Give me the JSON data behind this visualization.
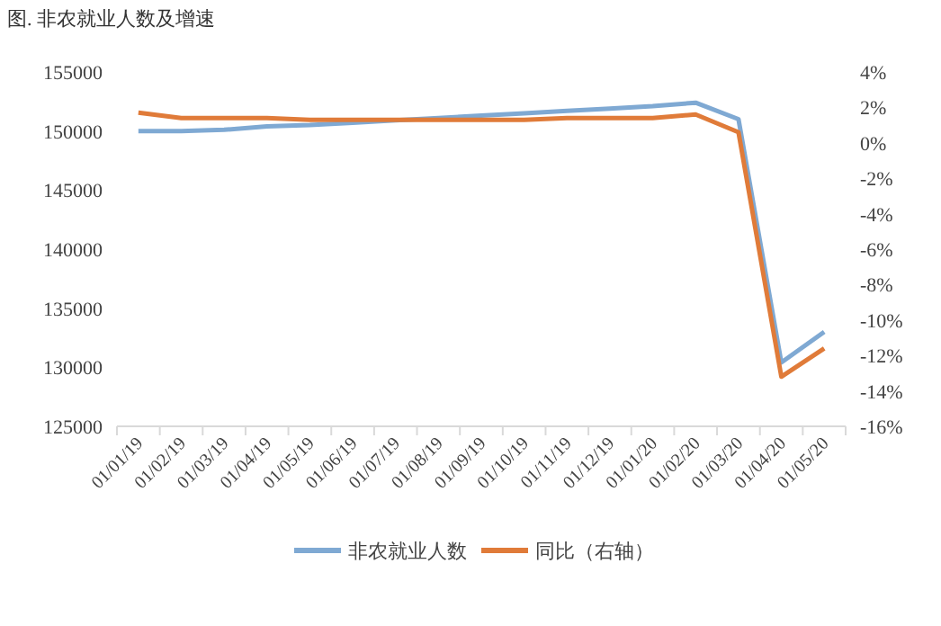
{
  "chart_data": {
    "type": "line",
    "title": "图. 非农就业人数及增速",
    "categories": [
      "01/01/19",
      "01/02/19",
      "01/03/19",
      "01/04/19",
      "01/05/19",
      "01/06/19",
      "01/07/19",
      "01/08/19",
      "01/09/19",
      "01/10/19",
      "01/11/19",
      "01/12/19",
      "01/01/20",
      "01/02/20",
      "01/03/20",
      "01/04/20",
      "01/05/20"
    ],
    "series": [
      {
        "name": "非农就业人数",
        "color": "#7fa9d3",
        "values": [
          150000,
          150000,
          150100,
          150400,
          150500,
          150700,
          150900,
          151100,
          151300,
          151500,
          151700,
          151900,
          152100,
          152400,
          151000,
          130400,
          133000
        ]
      },
      {
        "name": "同比（右轴）",
        "color": "#e07b39",
        "axis": "y2",
        "values": [
          1.7,
          1.4,
          1.4,
          1.4,
          1.3,
          1.3,
          1.3,
          1.3,
          1.3,
          1.3,
          1.4,
          1.4,
          1.4,
          1.6,
          0.6,
          -13.2,
          -11.6
        ]
      }
    ],
    "ylim": [
      125000,
      155000
    ],
    "yticks": [
      125000,
      130000,
      135000,
      140000,
      145000,
      150000,
      155000
    ],
    "y2lim": [
      -16,
      4
    ],
    "y2ticks": [
      {
        "value": -16,
        "label": "-16%"
      },
      {
        "value": -14,
        "label": "-14%"
      },
      {
        "value": -12,
        "label": "-12%"
      },
      {
        "value": -10,
        "label": "-10%"
      },
      {
        "value": -8,
        "label": "-8%"
      },
      {
        "value": -6,
        "label": "-6%"
      },
      {
        "value": -4,
        "label": "-4%"
      },
      {
        "value": -2,
        "label": "-2%"
      },
      {
        "value": 0,
        "label": "0%"
      },
      {
        "value": 2,
        "label": "2%"
      },
      {
        "value": 4,
        "label": "4%"
      }
    ],
    "grid": false,
    "legend": "bottom",
    "marker": "none",
    "line_style": "solid"
  }
}
